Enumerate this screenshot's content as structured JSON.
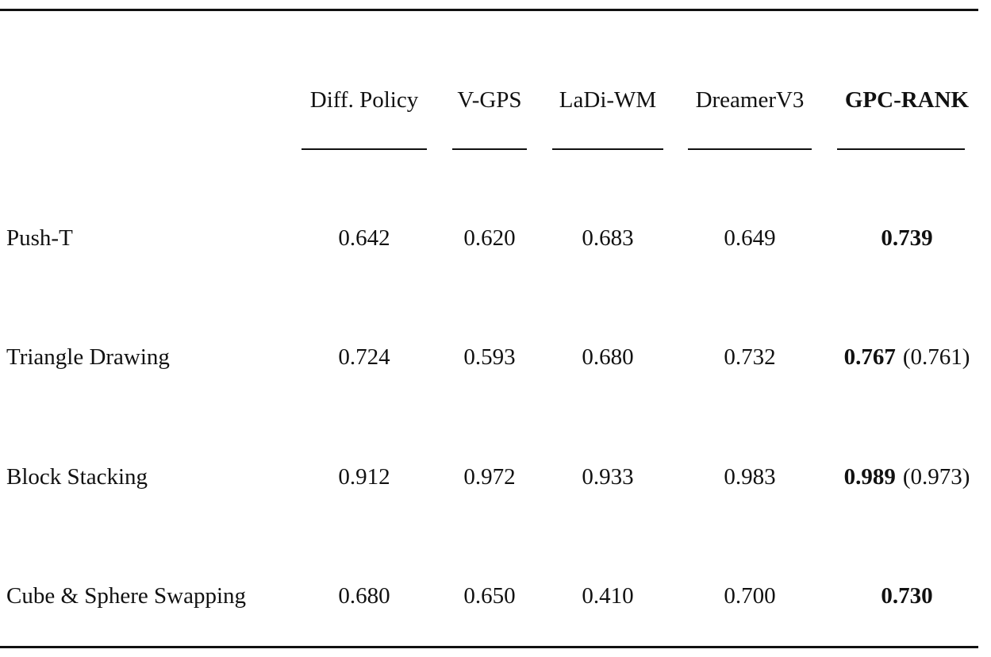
{
  "table": {
    "columns": [
      "Diff. Policy",
      "V-GPS",
      "LaDi-WM",
      "DreamerV3",
      "GPC-RANK"
    ],
    "rows": [
      {
        "task": "Push-T",
        "values": [
          "0.642",
          "0.620",
          "0.683",
          "0.649"
        ],
        "best": "0.739",
        "best_alt": ""
      },
      {
        "task": "Triangle Drawing",
        "values": [
          "0.724",
          "0.593",
          "0.680",
          "0.732"
        ],
        "best": "0.767",
        "best_alt": "(0.761)"
      },
      {
        "task": "Block Stacking",
        "values": [
          "0.912",
          "0.972",
          "0.933",
          "0.983"
        ],
        "best": "0.989",
        "best_alt": "(0.973)"
      },
      {
        "task": "Cube & Sphere Swapping",
        "values": [
          "0.680",
          "0.650",
          "0.410",
          "0.700"
        ],
        "best": "0.730",
        "best_alt": ""
      }
    ]
  }
}
